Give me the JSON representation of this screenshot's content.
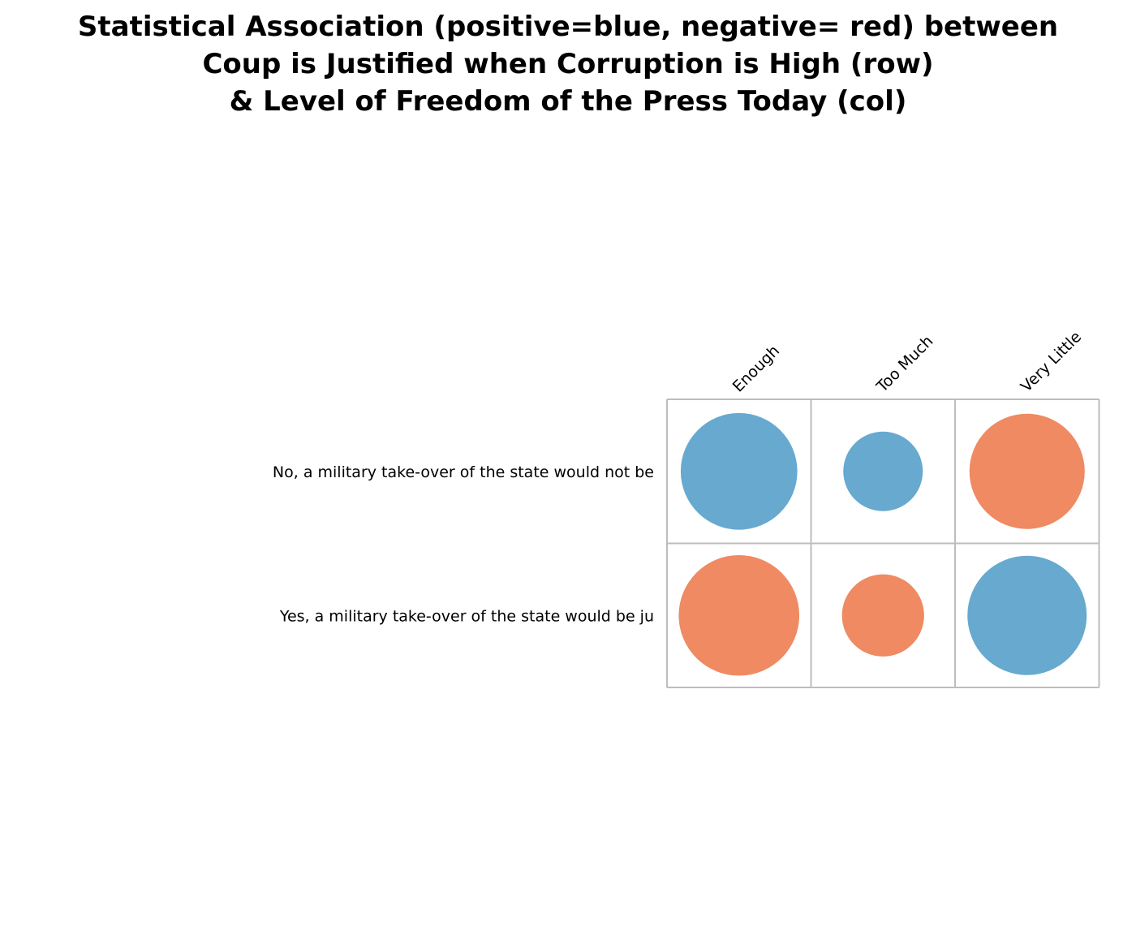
{
  "chart_data": {
    "type": "heatmap",
    "title_lines": [
      "Statistical Association (positive=blue, negative= red) between",
      "Coup is Justified when Corruption is High (row)",
      "& Level of Freedom of the Press Today (col)"
    ],
    "rows": [
      "No, a military take-over of the state would not be",
      "Yes, a military take-over of the state would be ju"
    ],
    "columns": [
      "Enough",
      "Too Much",
      "Very Little"
    ],
    "values": [
      [
        0.88,
        0.6,
        -0.87
      ],
      [
        -0.91,
        -0.62,
        0.9
      ]
    ],
    "colors": {
      "positive": "#67a9cf",
      "negative": "#ef8a62",
      "grid": "#bdbdbd"
    },
    "encoding": "circle area/size = magnitude, color = sign"
  }
}
